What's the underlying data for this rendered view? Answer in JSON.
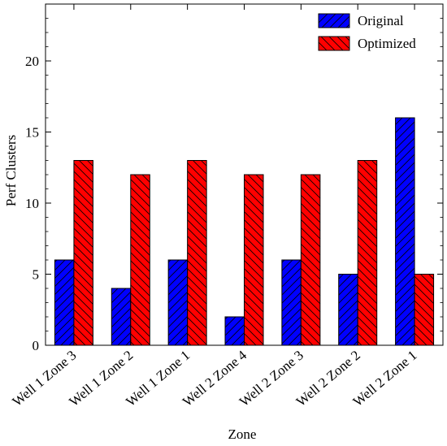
{
  "chart_data": {
    "type": "bar",
    "title": "",
    "xlabel": "Zone",
    "ylabel": "Perf Clusters",
    "ylim": [
      0,
      24
    ],
    "yticks": [
      0,
      5,
      10,
      15,
      20
    ],
    "grid": false,
    "legend_position": "top-right",
    "categories": [
      "Well 1 Zone 3",
      "Well 1 Zone 2",
      "Well 1 Zone 1",
      "Well 2 Zone 4",
      "Well 2 Zone 3",
      "Well 2 Zone 2",
      "Well 2 Zone 1"
    ],
    "series": [
      {
        "name": "Original",
        "color": "#0000ff",
        "hatch": "forward-diagonal",
        "values": [
          6,
          4,
          6,
          2,
          6,
          5,
          16
        ]
      },
      {
        "name": "Optimized",
        "color": "#ff0000",
        "hatch": "back-diagonal",
        "values": [
          13,
          12,
          13,
          12,
          12,
          13,
          5
        ]
      }
    ]
  }
}
